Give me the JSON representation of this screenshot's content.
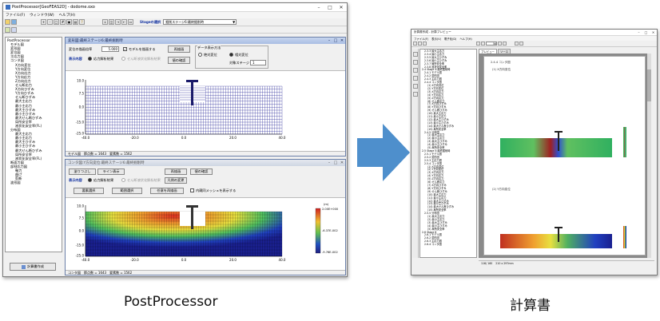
{
  "left_app": {
    "title": "PostProcessor[GeoFEAS2D] - dodome.oxo",
    "menu": [
      "ファイル(F)",
      "ウィンドウ(W)",
      "ヘルプ(H)"
    ],
    "stage_label": "Stageの選択",
    "stage_value": "掘削ステージ6:最終掘削時",
    "tree": [
      "PostProcessor",
      "モデル図",
      "変形図",
      "変位図",
      "主応力図",
      "コンタ図",
      "X方向変位",
      "Y方向変位",
      "X方向応力",
      "Y方向応力",
      "Z方向応力",
      "せん断応力",
      "X方向ひずみ",
      "Y方向ひずみ",
      "せん断ひずみ",
      "最大主応力",
      "最小主応力",
      "最大主ひずみ",
      "最小主ひずみ",
      "最大せん断ひずみ",
      "局所安全率",
      "液状化安全率(FL)",
      "分布図",
      "最大主応力",
      "最小主応力",
      "最大主ひずみ",
      "最小主ひずみ",
      "最大せん断ひずみ",
      "局所安全率",
      "液状化安全率(FL)",
      "断面力図",
      "部材応力図",
      "軸力",
      "曲げ",
      "剪断",
      "波形図"
    ],
    "report_button": "計算書作成",
    "top_window": {
      "title": "変形図:最終ステージ6:最終掘削時",
      "scale_label": "変位の描画倍率",
      "scale_value": "5.000",
      "draw_model_label": "モデルを描画する",
      "redraw": "再描画",
      "check_values": "値の確認",
      "display_label": "表示内容",
      "result_stress": "応力解析結果",
      "result_liquefaction": "せん断液状化解析結果",
      "data_display_label": "データ表示方法",
      "absolute": "絶対変位",
      "relative": "相対変位",
      "target_stage_label": "対象ステージ",
      "target_stage_value": "1",
      "y_ticks": [
        "10.0",
        "7.5",
        "0.0",
        "-15.0",
        "-25.0"
      ],
      "x_ticks": [
        "-40.0",
        "-20.0",
        "0.0",
        "20.0",
        "40.0"
      ],
      "status": [
        "モデル図",
        "節点数 = 1643",
        "要素数 = 1562"
      ]
    },
    "bottom_window": {
      "title": "コンタ図:Y方向変位:最終ステージ6:最終掘削時",
      "btn_fill": "塗りつぶし",
      "btn_line": "ライン表示",
      "redraw": "再描画",
      "check_values": "値の確認",
      "display_label": "表示内容",
      "result_stress": "応力解析結果",
      "result_liquefaction": "せん断液状化解析結果",
      "color_change": "凡例の変更",
      "element_select": "要素選択",
      "range_select": "範囲選択",
      "arbitrary_redraw": "任意を再描画",
      "show_mesh": "内蔵同メッシュを表示する",
      "unit": "(m)",
      "legend": [
        "2.00E+000",
        "-6.37E-002",
        "-9.76E-002"
      ],
      "y_ticks": [
        "10.0",
        "7.5",
        "0.0",
        "-15.0",
        "-25.0"
      ],
      "x_ticks": [
        "-40.0",
        "-20.0",
        "0.0",
        "20.0",
        "40.0"
      ],
      "status": [
        "コンタ図",
        "節点数 = 1643",
        "要素数 = 1562"
      ]
    }
  },
  "right_app": {
    "title": "計算書作成 - 計算プレビュー",
    "menu": [
      "ファイル(F)",
      "表示(V)",
      "電子化(D)",
      "ヘルプ(H)"
    ],
    "tabs": [
      "プレビュー",
      "ソース"
    ],
    "page_value": "56",
    "section_heading": "2.4.4 コンタ図",
    "caption_1": "(1) X方向変位",
    "caption_2": "(2) Y方向変位",
    "tree": [
      "2.3.3 最大主応力",
      "2.3.4 最小主応力",
      "2.3.5 最大主ひずみ",
      "2.3.6 最小主ひずみ",
      "2.3.7 局所安全率",
      "2.3.8 液状化安全率",
      "2.4 Stage 4:最終掘削時",
      "2.4.1 モデル図",
      "2.4.2 変形図",
      "2.4.3 主応力図",
      "2.4.4 コンタ図",
      "(1) X方向変位",
      "(2) Y方向変位",
      "(3) X方向応力",
      "(4) Y方向応力",
      "(5) Z方向応力",
      "(6) せん断応力",
      "(7) X方向ひずみ",
      "(8) Y方向ひずみ",
      "(9) せん断ひずみ",
      "(10) 最大主応力",
      "(11) 最小主応力",
      "(12) 最大主ひずみ",
      "(13) 最小主ひずみ",
      "(14) 最大せん断ひずみ",
      "(15) 局所安全率",
      "2.4.5 分布図",
      "(1) 最大主応力",
      "(2) 最小主応力",
      "(3) 最大主ひずみ",
      "(4) 最小主ひずみ",
      "(5) 局所安全率",
      "2.5 Stage 5:最終掘削時",
      "2.5.1 モデル図",
      "2.5.2 変形図",
      "2.5.3 主応力図",
      "2.5.4 コンタ図",
      "(1) X方向変位",
      "(2) Y方向変位",
      "(3) X方向応力",
      "(4) Y方向応力",
      "(5) Z方向応力",
      "(6) せん断応力",
      "(7) X方向ひずみ",
      "(8) Y方向ひずみ",
      "(9) せん断ひずみ",
      "(10) 最大主応力",
      "(11) 最小主応力",
      "(12) 最大主ひずみ",
      "(13) 最小主ひずみ",
      "(14) 最大せん断ひずみ",
      "(15) 局所安全率",
      "2.5.5 分布図",
      "(1) 最大主応力",
      "(2) 最小主応力",
      "(3) 最大主ひずみ",
      "(4) 最小主ひずみ",
      "(5) 局所安全率",
      "2.6 Stage 6",
      "2.6.1 モデル図",
      "2.6.2 変形図",
      "2.6.3 主応力図",
      "2.6.4 コンタ図"
    ],
    "status": [
      "116/ 160",
      "210 x 297mm"
    ]
  },
  "captions": {
    "left": "PostProcessor",
    "right": "計算書"
  },
  "colors": {
    "arrow": "#4e8fcc",
    "mesh": "#2a2a9a",
    "mdi_title": "#a9bde3"
  }
}
